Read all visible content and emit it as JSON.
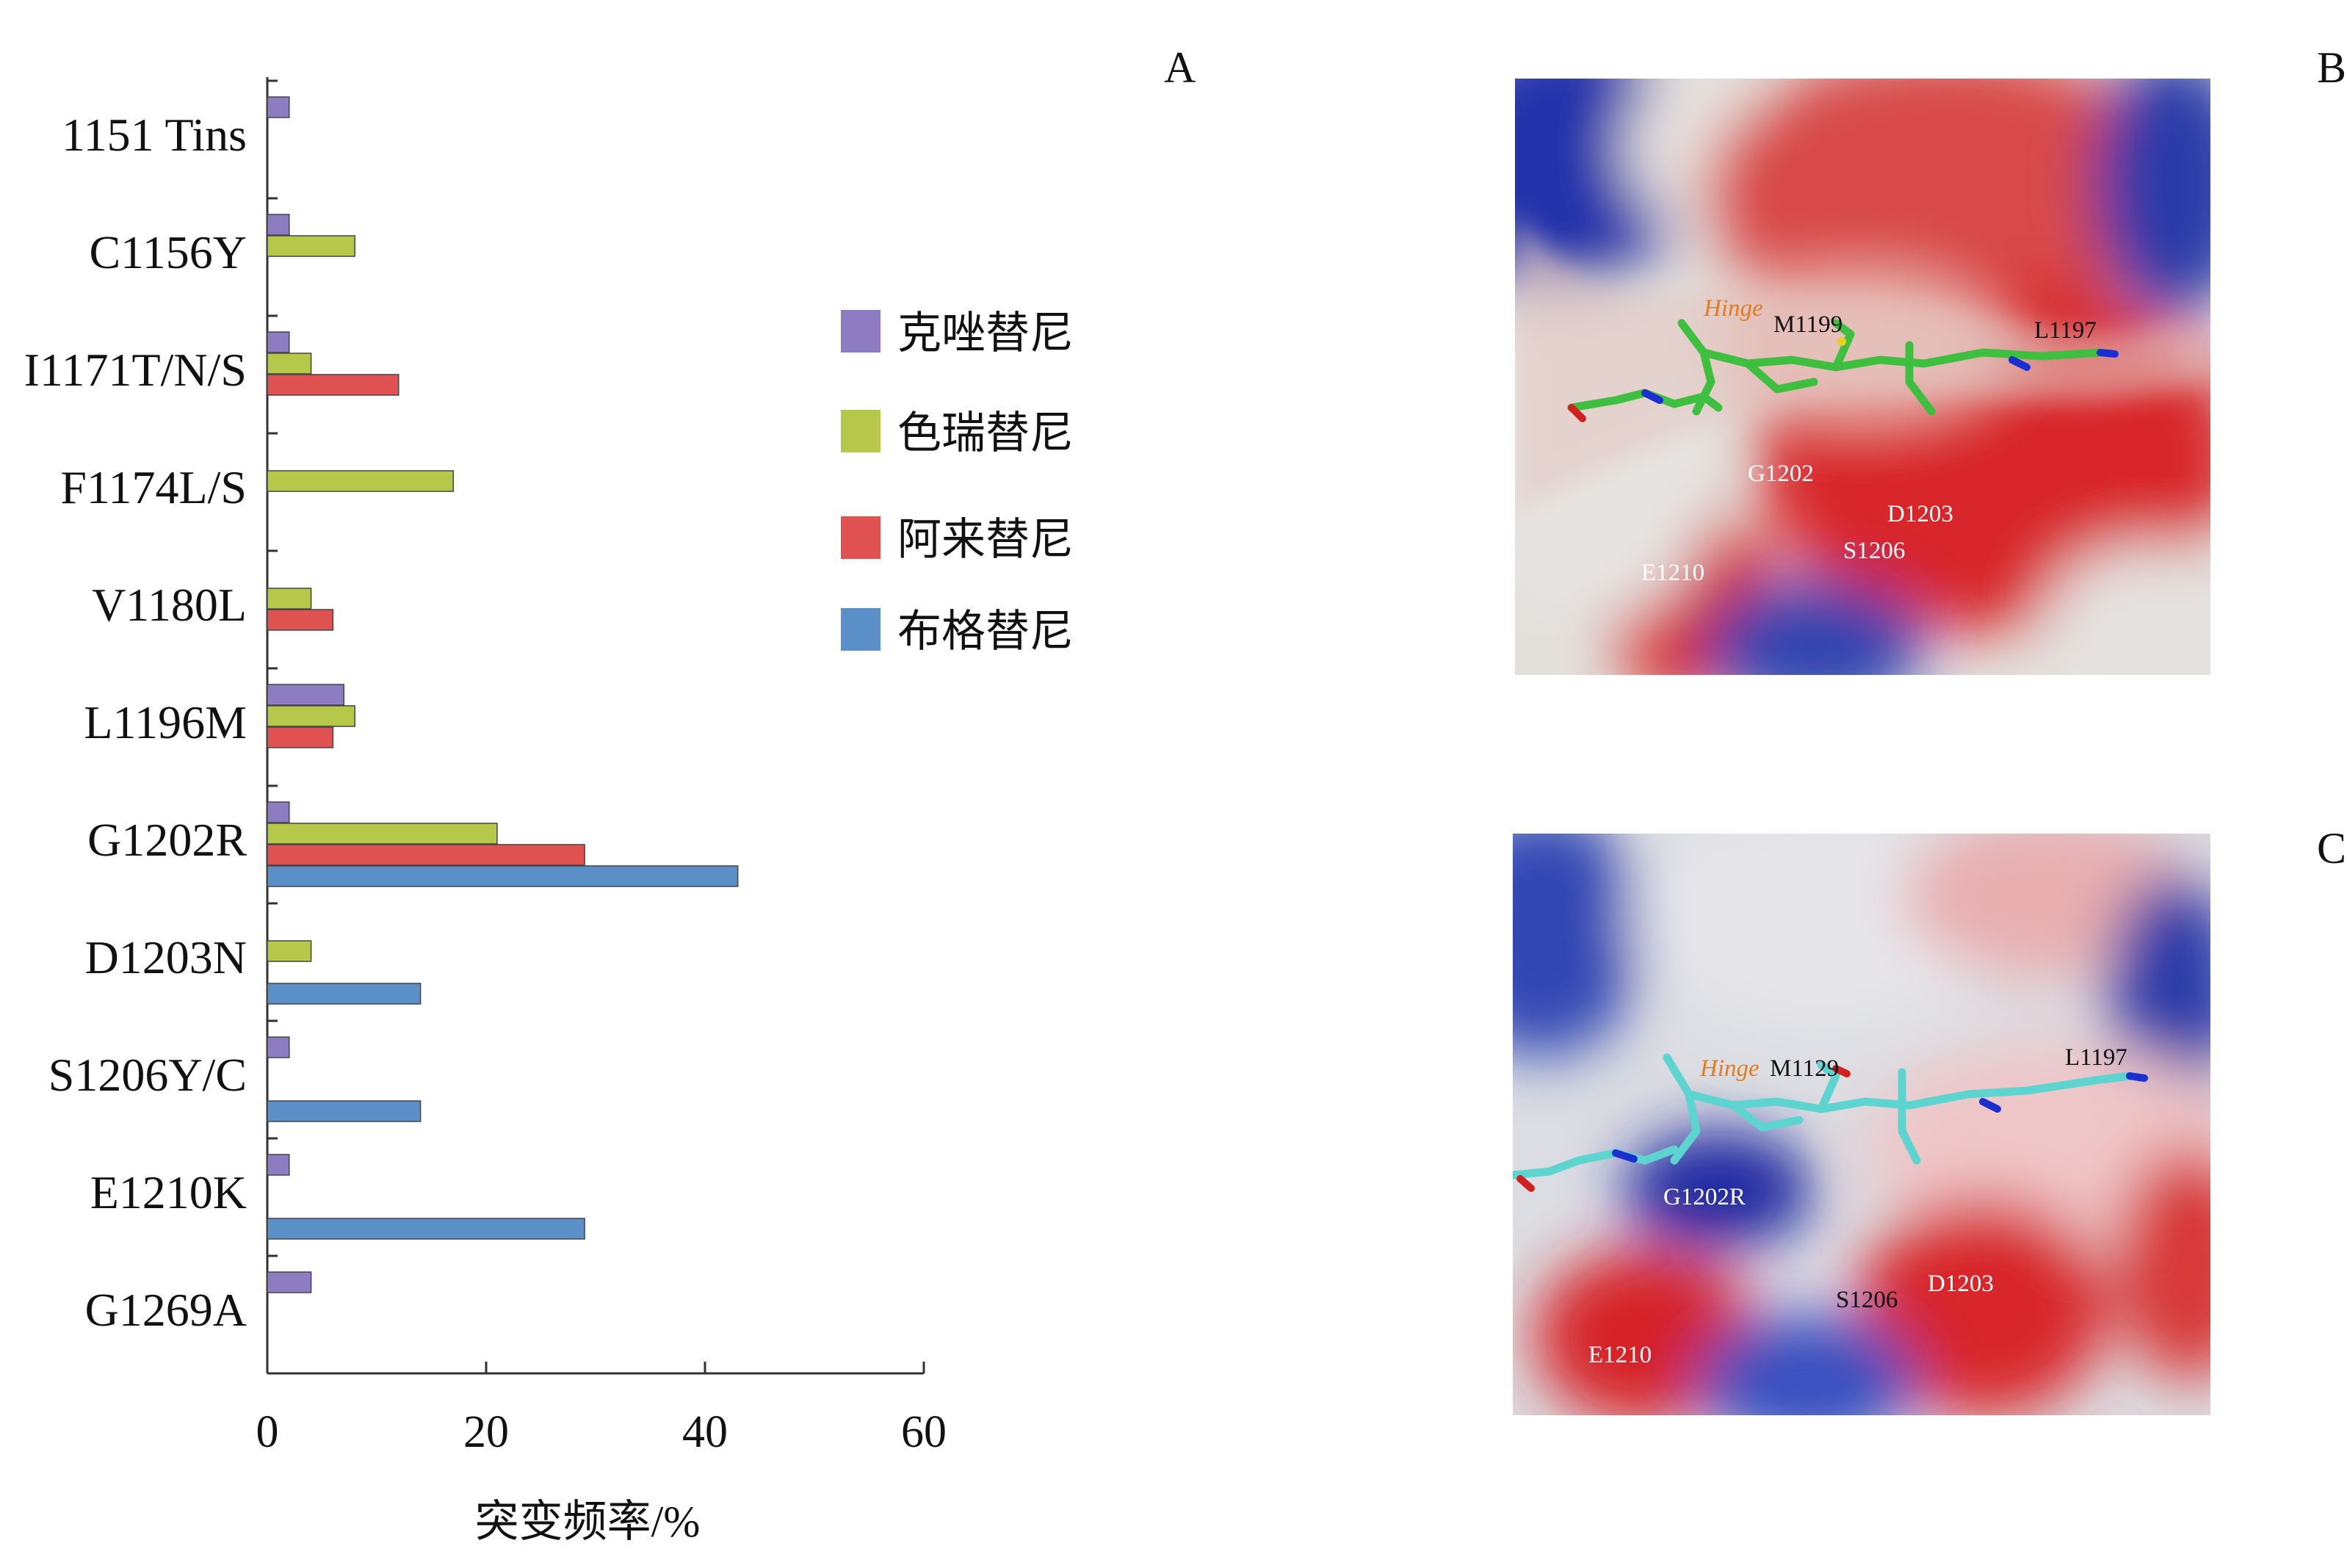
{
  "panels": {
    "a": "A",
    "b": "B",
    "c": "C"
  },
  "chart_data": {
    "type": "bar",
    "orientation": "horizontal",
    "categories": [
      "1151 Tins",
      "C1156Y",
      "I1171T/N/S",
      "F1174L/S",
      "V1180L",
      "L1196M",
      "G1202R",
      "D1203N",
      "S1206Y/C",
      "E1210K",
      "G1269A"
    ],
    "series": [
      {
        "name": "克唑替尼",
        "color": "#8e7cc3",
        "values": [
          2,
          2,
          2,
          null,
          null,
          7,
          2,
          null,
          2,
          2,
          4
        ]
      },
      {
        "name": "色瑞替尼",
        "color": "#b5c84a",
        "values": [
          null,
          8,
          4,
          17,
          4,
          8,
          21,
          4,
          null,
          null,
          null
        ]
      },
      {
        "name": "阿来替尼",
        "color": "#e05252",
        "values": [
          null,
          null,
          12,
          null,
          6,
          6,
          29,
          null,
          null,
          null,
          null
        ]
      },
      {
        "name": "布格替尼",
        "color": "#5b8fc7",
        "values": [
          null,
          null,
          null,
          null,
          null,
          null,
          43,
          14,
          14,
          29,
          null
        ]
      }
    ],
    "xlabel": "突变频率/%",
    "xlim": [
      0,
      60
    ],
    "xticks": [
      "0",
      "20",
      "40",
      "60"
    ],
    "legend_position": "right",
    "grid": false
  },
  "panel_b": {
    "labels": [
      "Hinge",
      "M1199",
      "L1197",
      "G1202",
      "D1203",
      "S1206",
      "E1210"
    ]
  },
  "panel_c": {
    "labels": [
      "Hinge",
      "M1129",
      "L1197",
      "G1202R",
      "S1206",
      "D1203",
      "E1210"
    ]
  }
}
